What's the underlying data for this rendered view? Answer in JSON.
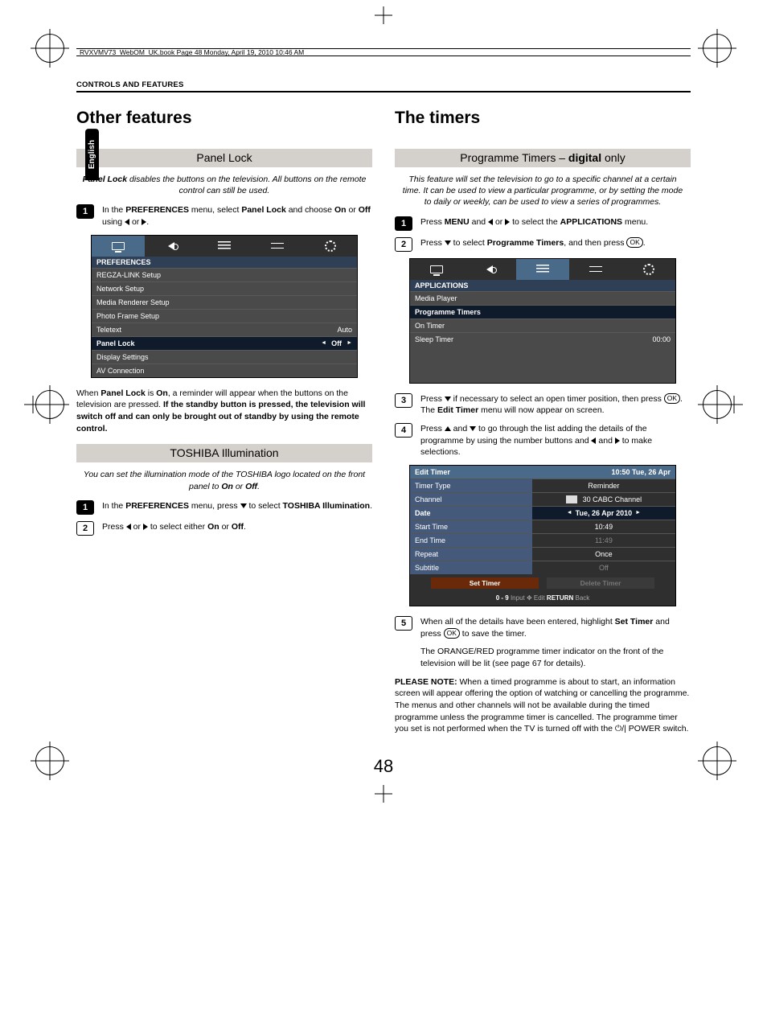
{
  "colors": {
    "band_bg": "#d4d0cb",
    "osd_bg": "#4a4a4a",
    "osd_tabbar": "#2f2f2f",
    "osd_tabsel": "#4a6a8a",
    "osd_title": "#2f3f55",
    "osd_highlight": "#0f1a2a",
    "et_label_bg": "#455a7a",
    "et_btn": "#6a2a0a"
  },
  "header": {
    "runhead": "RVXVMV73_WebOM_UK.book  Page 48  Monday, April 19, 2010  10:46 AM",
    "section": "CONTROLS AND FEATURES",
    "lang_tab": "English"
  },
  "left": {
    "h1": "Other features",
    "panel_lock": {
      "band": "Panel Lock",
      "intro_before_bold": "",
      "intro": "Panel Lock disables the buttons on the television. All buttons on the remote control can still be used.",
      "step1_a": "In the ",
      "step1_b": "PREFERENCES",
      "step1_c": " menu, select ",
      "step1_d": "Panel Lock",
      "step1_e": " and choose ",
      "step1_f": "On",
      "step1_g": " or ",
      "step1_h": "Off",
      "step1_i": " using ",
      "step1_j": " or ",
      "step1_k": ".",
      "osd": {
        "title": "PREFERENCES",
        "rows": [
          {
            "label": "REGZA-LINK Setup"
          },
          {
            "label": "Network Setup"
          },
          {
            "label": "Media Renderer Setup"
          },
          {
            "label": "Photo Frame Setup"
          },
          {
            "label": "Teletext",
            "value": "Auto"
          },
          {
            "label": "Panel Lock",
            "value": "Off",
            "highlight": true,
            "arrows": true
          },
          {
            "label": "Display Settings"
          },
          {
            "label": "AV Connection"
          }
        ]
      },
      "after_a": "When ",
      "after_b": "Panel Lock",
      "after_c": " is ",
      "after_d": "On",
      "after_e": ", a reminder will appear when the buttons on the television are pressed. ",
      "after_f": "If the standby button is pressed, the television will switch off and can only be brought out of standby by using the remote control."
    },
    "illum": {
      "band": "TOSHIBA Illumination",
      "intro": "You can set the illumination mode of the TOSHIBA logo located on the front panel to On or Off.",
      "step1_a": "In the ",
      "step1_b": "PREFERENCES",
      "step1_c": " menu, press ",
      "step1_d": " to select ",
      "step1_e": "TOSHIBA Illumination",
      "step1_f": ".",
      "step2_a": "Press ",
      "step2_b": " or ",
      "step2_c": " to select either ",
      "step2_d": "On",
      "step2_e": " or ",
      "step2_f": "Off",
      "step2_g": "."
    }
  },
  "right": {
    "h1": "The timers",
    "pt": {
      "band_pre": "Programme Timers – ",
      "band_bold": "digital",
      "band_post": " only",
      "intro": "This feature will set the television to go to a specific channel at a certain time. It can be used to view a particular programme, or by setting the mode to daily or weekly, can be used to view a series of programmes.",
      "step1_a": "Press ",
      "step1_b": "MENU",
      "step1_c": " and ",
      "step1_d": " or ",
      "step1_e": " to select the ",
      "step1_f": "APPLICATIONS",
      "step1_g": " menu.",
      "step2_a": "Press ",
      "step2_b": " to select ",
      "step2_c": "Programme Timers",
      "step2_d": ", and then press ",
      "step2_e": ".",
      "osd": {
        "title": "APPLICATIONS",
        "rows": [
          {
            "label": "Media Player"
          },
          {
            "label": "Programme Timers",
            "highlight": true
          },
          {
            "label": "On Timer"
          },
          {
            "label": "Sleep Timer",
            "value": "00:00"
          }
        ]
      },
      "step3_a": "Press ",
      "step3_b": " if necessary to select an open timer position, then press ",
      "step3_c": ". The ",
      "step3_d": "Edit Timer",
      "step3_e": " menu will now appear on screen.",
      "step4_a": "Press ",
      "step4_b": " and ",
      "step4_c": " to go through the list adding the details of the programme by using the number buttons and ",
      "step4_d": " and ",
      "step4_e": " to make selections.",
      "et": {
        "title": "Edit Timer",
        "clock": "10:50 Tue, 26 Apr",
        "rows": [
          {
            "label": "Timer Type",
            "value": "Reminder"
          },
          {
            "label": "Channel",
            "value": "30 CABC Channel",
            "channel_icon": true
          },
          {
            "label": "Date",
            "value": "Tue, 26 Apr 2010",
            "highlight": true,
            "arrows": true
          },
          {
            "label": "Start Time",
            "value": "10:49"
          },
          {
            "label": "End Time",
            "value": "11:49",
            "dim": true
          },
          {
            "label": "Repeat",
            "value": "Once"
          },
          {
            "label": "Subtitle",
            "value": "Off",
            "dim": true
          }
        ],
        "btn_set": "Set Timer",
        "btn_del": "Delete Timer",
        "foot_09": "0 - 9",
        "foot_input": " Input  ",
        "foot_edit_icon": "✥",
        "foot_edit": " Edit  ",
        "foot_return": "RETURN",
        "foot_back": " Back"
      },
      "step5_a": "When all of the details have been entered, highlight ",
      "step5_b": "Set Timer",
      "step5_c": " and press ",
      "step5_d": " to save the timer.",
      "step5_para2": "The ORANGE/RED programme timer indicator on the front of the television will be lit (see page 67 for details).",
      "note_label": "PLEASE NOTE:",
      "note_body": " When a timed programme is about to start, an information screen will appear offering the option of watching or cancelling the programme. The menus and other channels will not be available during the timed programme unless the programme timer is cancelled. The programme timer you set is not performed when the TV is turned off with the ⏻/| POWER switch."
    }
  },
  "page_number": "48"
}
